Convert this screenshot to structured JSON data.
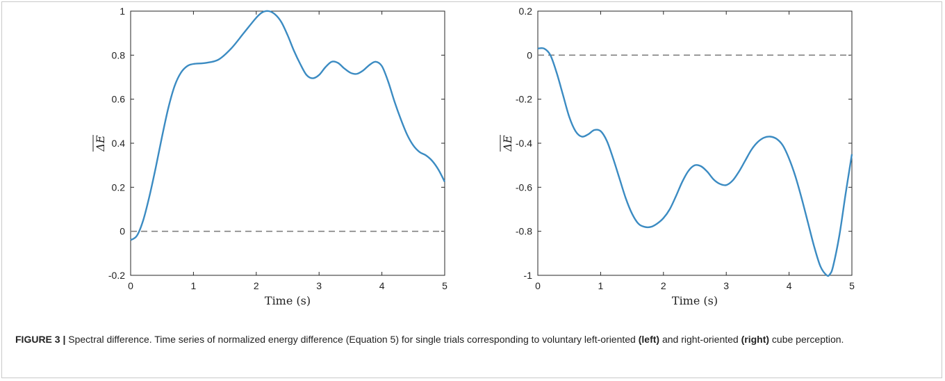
{
  "chart_data": [
    {
      "type": "line",
      "panel": "left",
      "xlabel": "Time (s)",
      "ylabel": "ΔE",
      "xlim": [
        0,
        5
      ],
      "ylim": [
        -0.2,
        1
      ],
      "xticks": [
        "0",
        "1",
        "2",
        "3",
        "4",
        "5"
      ],
      "yticks": [
        "-0.2",
        "0",
        "0.2",
        "0.4",
        "0.6",
        "0.8",
        "1"
      ],
      "reference_line": {
        "y": 0,
        "style": "dashed",
        "color": "#808080"
      },
      "series": [
        {
          "color": "#3b8bc2",
          "x": [
            0,
            0.1,
            0.2,
            0.3,
            0.4,
            0.5,
            0.6,
            0.7,
            0.8,
            0.9,
            1.0,
            1.2,
            1.4,
            1.6,
            1.8,
            2.0,
            2.1,
            2.2,
            2.3,
            2.4,
            2.5,
            2.6,
            2.7,
            2.8,
            2.9,
            3.0,
            3.1,
            3.2,
            3.3,
            3.4,
            3.5,
            3.6,
            3.7,
            3.8,
            3.9,
            4.0,
            4.1,
            4.2,
            4.3,
            4.4,
            4.5,
            4.6,
            4.7,
            4.8,
            4.9,
            5.0
          ],
          "y": [
            -0.04,
            -0.02,
            0.05,
            0.16,
            0.29,
            0.43,
            0.56,
            0.66,
            0.72,
            0.75,
            0.76,
            0.765,
            0.78,
            0.83,
            0.9,
            0.97,
            0.995,
            1.0,
            0.985,
            0.95,
            0.89,
            0.82,
            0.76,
            0.71,
            0.695,
            0.71,
            0.745,
            0.77,
            0.765,
            0.74,
            0.72,
            0.715,
            0.73,
            0.755,
            0.77,
            0.75,
            0.68,
            0.59,
            0.51,
            0.44,
            0.39,
            0.36,
            0.345,
            0.32,
            0.28,
            0.225
          ]
        }
      ]
    },
    {
      "type": "line",
      "panel": "right",
      "xlabel": "Time (s)",
      "ylabel": "ΔE",
      "xlim": [
        0,
        5
      ],
      "ylim": [
        -1,
        0.2
      ],
      "xticks": [
        "0",
        "1",
        "2",
        "3",
        "4",
        "5"
      ],
      "yticks": [
        "-1",
        "-0.8",
        "-0.6",
        "-0.4",
        "-0.2",
        "0",
        "0.2"
      ],
      "reference_line": {
        "y": 0,
        "style": "dashed",
        "color": "#808080"
      },
      "series": [
        {
          "color": "#3b8bc2",
          "x": [
            0,
            0.1,
            0.2,
            0.3,
            0.4,
            0.5,
            0.6,
            0.7,
            0.8,
            0.9,
            1.0,
            1.1,
            1.2,
            1.3,
            1.4,
            1.5,
            1.6,
            1.7,
            1.8,
            1.9,
            2.0,
            2.1,
            2.2,
            2.3,
            2.4,
            2.5,
            2.6,
            2.7,
            2.8,
            2.9,
            3.0,
            3.1,
            3.2,
            3.3,
            3.4,
            3.5,
            3.6,
            3.7,
            3.8,
            3.9,
            4.0,
            4.1,
            4.2,
            4.3,
            4.4,
            4.5,
            4.6,
            4.65,
            4.7,
            4.8,
            4.9,
            5.0
          ],
          "y": [
            0.03,
            0.03,
            0.0,
            -0.08,
            -0.18,
            -0.28,
            -0.345,
            -0.37,
            -0.36,
            -0.34,
            -0.345,
            -0.39,
            -0.47,
            -0.56,
            -0.65,
            -0.72,
            -0.765,
            -0.78,
            -0.78,
            -0.765,
            -0.74,
            -0.7,
            -0.64,
            -0.575,
            -0.525,
            -0.5,
            -0.505,
            -0.53,
            -0.565,
            -0.585,
            -0.59,
            -0.57,
            -0.53,
            -0.48,
            -0.43,
            -0.395,
            -0.375,
            -0.37,
            -0.38,
            -0.41,
            -0.47,
            -0.55,
            -0.65,
            -0.76,
            -0.87,
            -0.96,
            -1.0,
            -0.995,
            -0.96,
            -0.82,
            -0.63,
            -0.45
          ]
        }
      ]
    }
  ],
  "caption": {
    "label": "FIGURE 3 |",
    "text_1": " Spectral difference. Time series of normalized energy difference (Equation 5) for single trials corresponding to voluntary left-oriented ",
    "bold_left": "(left)",
    "text_2": " and right-oriented ",
    "bold_right": "(right)",
    "text_3": " cube perception."
  }
}
